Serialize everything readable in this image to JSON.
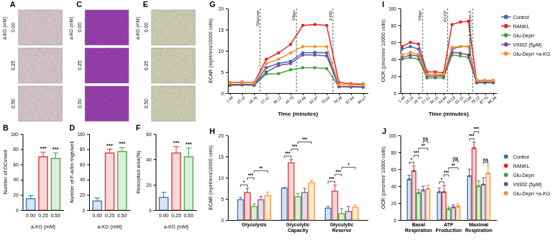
{
  "images": [
    {
      "title": "A",
      "header": "a-KG (mM)",
      "rows": [
        "0.00",
        "0.25",
        "0.50"
      ],
      "color": "#d8c6cf"
    },
    {
      "title": "C",
      "header": "a-KG (mM)",
      "rows": [
        "0.00",
        "0.25",
        "0.50"
      ],
      "color": "#9a3fb0"
    },
    {
      "title": "E",
      "header": "a-KG (mM)",
      "rows": [
        "0.00",
        "0.25",
        "0.50"
      ],
      "color": "#cfd0b4"
    }
  ],
  "chart_data": [
    {
      "type": "bar",
      "title": "B",
      "categories": [
        "0.00",
        "0.25",
        "0.50"
      ],
      "values": [
        15,
        70,
        68
      ],
      "errors": [
        4,
        6,
        7
      ],
      "colors": [
        "#2f6db5",
        "#e3262a",
        "#3fa535"
      ],
      "ylim": [
        0,
        100
      ],
      "yticks": [
        0,
        20,
        40,
        60,
        80,
        100
      ],
      "xlabel": "a-KG (mM)",
      "ylabel": "Number of OCs/well",
      "significance": [
        {
          "category": 1,
          "label": "***"
        },
        {
          "category": 2,
          "label": "***"
        }
      ]
    },
    {
      "type": "bar",
      "title": "D",
      "categories": [
        "0.00",
        "0.25",
        "0.50"
      ],
      "values": [
        12,
        75,
        77
      ],
      "errors": [
        4,
        5,
        5
      ],
      "colors": [
        "#2f6db5",
        "#e3262a",
        "#3fa535"
      ],
      "ylim": [
        0,
        100
      ],
      "yticks": [
        0,
        20,
        40,
        60,
        80,
        100
      ],
      "xlabel": "a-KG (mM)",
      "ylabel": "Number of F-actin rings/well",
      "significance": [
        {
          "category": 1,
          "label": "***"
        },
        {
          "category": 2,
          "label": "***"
        }
      ]
    },
    {
      "type": "bar",
      "title": "F",
      "categories": [
        "0.00",
        "0.25",
        "0.50"
      ],
      "values": [
        10,
        45,
        42
      ],
      "errors": [
        4,
        5,
        7
      ],
      "colors": [
        "#2f6db5",
        "#e3262a",
        "#3fa535"
      ],
      "ylim": [
        0,
        60
      ],
      "yticks": [
        0,
        20,
        40,
        60
      ],
      "xlabel": "a-KG (mM)",
      "ylabel": "Resorption area(%)",
      "significance": [
        {
          "category": 1,
          "label": "***"
        },
        {
          "category": 2,
          "label": "***"
        }
      ]
    },
    {
      "type": "line",
      "title": "G",
      "x": [
        1.49,
        10.1,
        18.76,
        27.41,
        36.12,
        44.73,
        53.46,
        62.07,
        70.54,
        79.28,
        87.94,
        96.57
      ],
      "xticks": [
        1.49,
        {
          "value": 10.1,
          "label": "10.10"
        },
        18.76,
        27.41,
        36.12,
        44.73,
        53.46,
        62.07,
        70.54,
        79.28,
        87.94,
        96.57
      ],
      "xlim": [
        0,
        100
      ],
      "ylim": [
        0,
        20
      ],
      "yticks": [
        0,
        5,
        10,
        15,
        20
      ],
      "xlabel": "Time (minutes)",
      "ylabel": "ECAR (mpH/min/10000 cells)",
      "events": [
        {
          "x": 23,
          "label": "Glucose"
        },
        {
          "x": 49,
          "label": "Oligo"
        },
        {
          "x": 75,
          "label": "2-DG"
        }
      ],
      "series": [
        {
          "color": "#2f6db5",
          "marker": "circle",
          "values": [
            2,
            2.1,
            2,
            6,
            7,
            7.5,
            9.5,
            9.6,
            9.5,
            1.6,
            1.5,
            1.5
          ]
        },
        {
          "color": "#e3262a",
          "marker": "circle",
          "values": [
            2.5,
            2.6,
            2.5,
            8,
            9.5,
            11.5,
            16,
            16.2,
            16,
            2.5,
            2.2,
            2.1
          ]
        },
        {
          "color": "#3fa535",
          "marker": "circle",
          "values": [
            1.8,
            1.9,
            1.8,
            4.5,
            4.6,
            5.5,
            6,
            6,
            5.8,
            1.5,
            1.4,
            1.4
          ]
        },
        {
          "color": "#7d4a9e",
          "marker": "circle",
          "values": [
            2,
            2,
            2,
            5,
            6.5,
            7,
            9,
            9,
            8.8,
            1.5,
            1.5,
            1.4
          ]
        },
        {
          "color": "#f3922f",
          "marker": "circle",
          "values": [
            2.4,
            2.5,
            2.4,
            7,
            8,
            9.5,
            11,
            11,
            11,
            2,
            1.9,
            1.9
          ]
        }
      ]
    },
    {
      "type": "line",
      "title": "I",
      "x": [
        1.49,
        10.15,
        18.75,
        27.51,
        36.15,
        44.8,
        53.53,
        62.15,
        70.58,
        79.12,
        87.75,
        96.38
      ],
      "xticks": [
        1.49,
        10.15,
        18.75,
        27.51,
        36.15,
        {
          "value": 44.8,
          "label": "44.80"
        },
        53.53,
        62.15,
        70.58,
        79.12,
        87.75,
        96.38
      ],
      "xlim": [
        0,
        100
      ],
      "ylim": [
        0,
        100
      ],
      "yticks": [
        0,
        20,
        40,
        60,
        80,
        100
      ],
      "xlabel": "Time (minutes)",
      "ylabel": "OCR (pmo/min/ 10000 cells)",
      "events": [
        {
          "x": 23,
          "label": "Oligo"
        },
        {
          "x": 49,
          "label": "FCCP"
        },
        {
          "x": 75,
          "label": "Rotenone & Antimycin A"
        }
      ],
      "legend": "right",
      "series": [
        {
          "name": "Control",
          "color": "#2f6db5",
          "marker": "circle",
          "values": [
            52,
            55,
            52,
            22,
            22,
            21,
            52,
            55,
            55,
            13,
            13,
            13
          ]
        },
        {
          "name": "RANKL",
          "color": "#e3262a",
          "marker": "circle",
          "values": [
            55,
            60,
            58,
            25,
            25,
            24,
            81,
            84,
            85,
            15,
            15,
            15
          ]
        },
        {
          "name": "Glu-Depri",
          "color": "#3fa535",
          "marker": "circle",
          "values": [
            40,
            42,
            40,
            18,
            18,
            18,
            45,
            44,
            42,
            12,
            12,
            12
          ]
        },
        {
          "name": "V9302 (5μM)",
          "color": "#7d4a9e",
          "marker": "circle",
          "values": [
            42,
            45,
            44,
            20,
            20,
            20,
            48,
            47,
            45,
            13,
            13,
            13
          ]
        },
        {
          "name": "Glu-Depri +a-KG",
          "color": "#f3922f",
          "marker": "circle",
          "values": [
            45,
            48,
            46,
            22,
            22,
            22,
            54,
            55,
            55,
            15,
            15,
            15
          ]
        }
      ]
    },
    {
      "type": "bar",
      "title": "H",
      "categories": [
        "Glycolysis",
        "Glycolytic Capacity",
        "Glycolytic Reserve"
      ],
      "ylim": [
        0,
        20
      ],
      "yticks": [
        0,
        5,
        10,
        15,
        20
      ],
      "ylabel": "ECAR (mpH/min/10000 cells)",
      "series": [
        {
          "color": "#2f6db5",
          "values": [
            4.8,
            7.5,
            2.8
          ],
          "errors": [
            0.5,
            0.2,
            0.4
          ]
        },
        {
          "color": "#e3262a",
          "values": [
            6.5,
            13.5,
            6.8
          ],
          "errors": [
            1,
            0.8,
            1.5
          ]
        },
        {
          "color": "#3fa535",
          "values": [
            3.2,
            5.5,
            1.5
          ],
          "errors": [
            0.6,
            0.8,
            1.2
          ]
        },
        {
          "color": "#7d4a9e",
          "values": [
            4.8,
            6.5,
            2
          ],
          "errors": [
            0.8,
            1,
            1.2
          ]
        },
        {
          "color": "#f3922f",
          "values": [
            5.8,
            8.8,
            3
          ],
          "errors": [
            0.8,
            0.6,
            0.5
          ]
        }
      ],
      "significance": [
        {
          "category": 0,
          "from": 0,
          "to": 1,
          "label": "*"
        },
        {
          "category": 0,
          "from": 1,
          "to": 2,
          "label": "***"
        },
        {
          "category": 0,
          "from": 2,
          "to": 4,
          "label": "**"
        },
        {
          "category": 1,
          "from": 0,
          "to": 1,
          "label": "***"
        },
        {
          "category": 1,
          "from": 1,
          "to": 2,
          "label": "***"
        },
        {
          "category": 1,
          "from": 2,
          "to": 4,
          "label": "***"
        },
        {
          "category": 2,
          "from": 0,
          "to": 1,
          "label": "***"
        },
        {
          "category": 2,
          "from": 1,
          "to": 2,
          "label": "***"
        },
        {
          "category": 2,
          "from": 2,
          "to": 4,
          "label": "*"
        }
      ]
    },
    {
      "type": "bar",
      "title": "J",
      "categories": [
        "Basal Respiration",
        "ATP Production",
        "Maximal Respiration"
      ],
      "ylim": [
        0,
        100
      ],
      "yticks": [
        0,
        20,
        40,
        60,
        80,
        100
      ],
      "ylabel": "OCR (pmo/min/ 10000 cells)",
      "legend": "right",
      "series": [
        {
          "name": "Control",
          "color": "#2f6db5",
          "marker": "circle",
          "values": [
            48,
            33,
            52
          ],
          "errors": [
            5,
            5,
            8
          ]
        },
        {
          "name": "RANKL",
          "color": "#e3262a",
          "marker": "circle",
          "values": [
            58,
            33,
            85
          ],
          "errors": [
            6,
            8,
            7
          ]
        },
        {
          "name": "Glu-Depri",
          "color": "#3fa535",
          "marker": "circle",
          "values": [
            32,
            13,
            40
          ],
          "errors": [
            4,
            3,
            6
          ]
        },
        {
          "name": "V9302 (5μM)",
          "color": "#7d4a9e",
          "marker": "circle",
          "values": [
            35,
            15,
            42
          ],
          "errors": [
            5,
            3,
            8
          ]
        },
        {
          "name": "Glu-Depri +a-KG",
          "color": "#f3922f",
          "marker": "circle",
          "values": [
            37,
            16,
            55
          ],
          "errors": [
            4,
            3,
            9
          ]
        }
      ],
      "significance": [
        {
          "category": 0,
          "from": 0,
          "to": 1,
          "label": "*"
        },
        {
          "category": 0,
          "from": 1,
          "to": 2,
          "label": "***"
        },
        {
          "category": 0,
          "from": 2,
          "to": 4,
          "label": "**"
        },
        {
          "category": 0,
          "from": 3,
          "to": 4,
          "label": "ns"
        },
        {
          "category": 1,
          "from": 0,
          "to": 1,
          "label": "*"
        },
        {
          "category": 1,
          "from": 1,
          "to": 2,
          "label": "***"
        },
        {
          "category": 1,
          "from": 2,
          "to": 4,
          "label": "**"
        },
        {
          "category": 1,
          "from": 3,
          "to": 4,
          "label": "ns"
        },
        {
          "category": 2,
          "from": 0,
          "to": 1,
          "label": "***"
        },
        {
          "category": 2,
          "from": 1,
          "to": 2,
          "label": "***"
        },
        {
          "category": 2,
          "from": 3,
          "to": 4,
          "label": "ns"
        }
      ]
    }
  ]
}
